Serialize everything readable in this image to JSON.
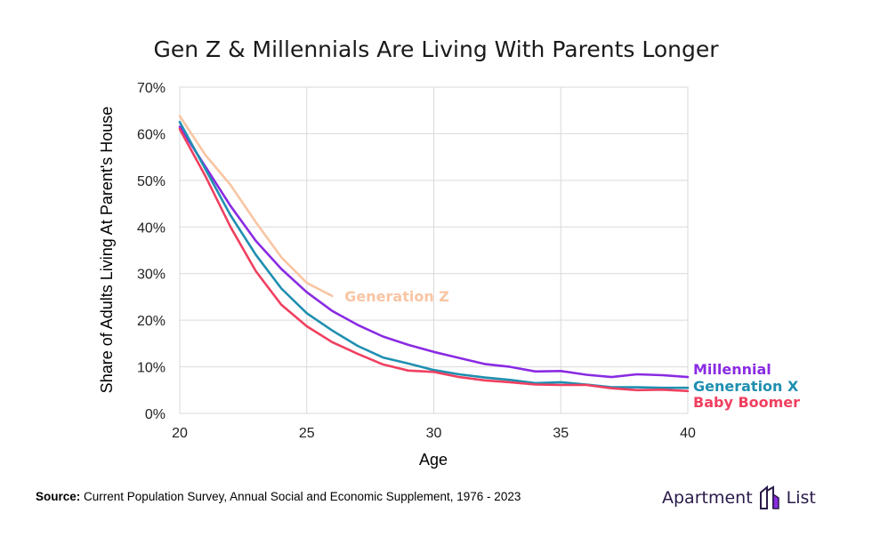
{
  "chart_data": {
    "type": "line",
    "title": "Gen Z & Millennials Are Living With Parents Longer",
    "xlabel": "Age",
    "ylabel": "Share of Adults Living At Parent's House",
    "xlim": [
      20,
      40
    ],
    "ylim": [
      0,
      70
    ],
    "x_ticks": [
      20,
      25,
      30,
      35,
      40
    ],
    "x_tick_labels": [
      "20",
      "25",
      "30",
      "35",
      "40"
    ],
    "y_ticks": [
      0,
      10,
      20,
      30,
      40,
      50,
      60,
      70
    ],
    "y_tick_labels": [
      "0%",
      "10%",
      "20%",
      "30%",
      "40%",
      "50%",
      "60%",
      "70%"
    ],
    "grid": true,
    "legend": "inline labels at line ends",
    "series": [
      {
        "name": "Generation Z",
        "color": "#f9c5a3",
        "x": [
          20,
          21,
          22,
          23,
          24,
          25,
          26
        ],
        "values": [
          63.8,
          55.5,
          49.0,
          41.0,
          33.5,
          28.0,
          25.2
        ]
      },
      {
        "name": "Millennial",
        "color": "#8a2be2",
        "x": [
          20,
          21,
          22,
          23,
          24,
          25,
          26,
          27,
          28,
          29,
          30,
          31,
          32,
          33,
          34,
          35,
          36,
          37,
          38,
          39,
          40
        ],
        "values": [
          61.5,
          53.0,
          44.5,
          37.0,
          31.0,
          26.0,
          22.0,
          19.0,
          16.5,
          14.7,
          13.2,
          11.9,
          10.6,
          10.0,
          9.0,
          9.1,
          8.3,
          7.8,
          8.4,
          8.2,
          7.8
        ]
      },
      {
        "name": "Generation X",
        "color": "#1f8fb0",
        "x": [
          20,
          21,
          22,
          23,
          24,
          25,
          26,
          27,
          28,
          29,
          30,
          31,
          32,
          33,
          34,
          35,
          36,
          37,
          38,
          39,
          40
        ],
        "values": [
          62.5,
          52.5,
          42.5,
          34.0,
          26.8,
          21.5,
          17.8,
          14.5,
          12.0,
          10.7,
          9.3,
          8.4,
          7.7,
          7.2,
          6.5,
          6.7,
          6.2,
          5.6,
          5.6,
          5.5,
          5.5
        ]
      },
      {
        "name": "Baby Boomer",
        "color": "#f04060",
        "x": [
          20,
          21,
          22,
          23,
          24,
          25,
          26,
          27,
          28,
          29,
          30,
          31,
          32,
          33,
          34,
          35,
          36,
          37,
          38,
          39,
          40
        ],
        "values": [
          61.0,
          51.0,
          40.0,
          30.5,
          23.3,
          18.7,
          15.3,
          12.8,
          10.5,
          9.2,
          8.9,
          7.8,
          7.1,
          6.7,
          6.2,
          6.1,
          6.1,
          5.4,
          5.0,
          5.1,
          4.8
        ]
      }
    ]
  },
  "footer": {
    "source_label": "Source:",
    "source_text": "Current Population Survey, Annual Social and Economic Supplement, 1976 - 2023"
  },
  "brand": {
    "left_word": "Apartment",
    "right_word": "List",
    "logo_icon": "building-logo-icon",
    "color": "#2a1a4a"
  }
}
